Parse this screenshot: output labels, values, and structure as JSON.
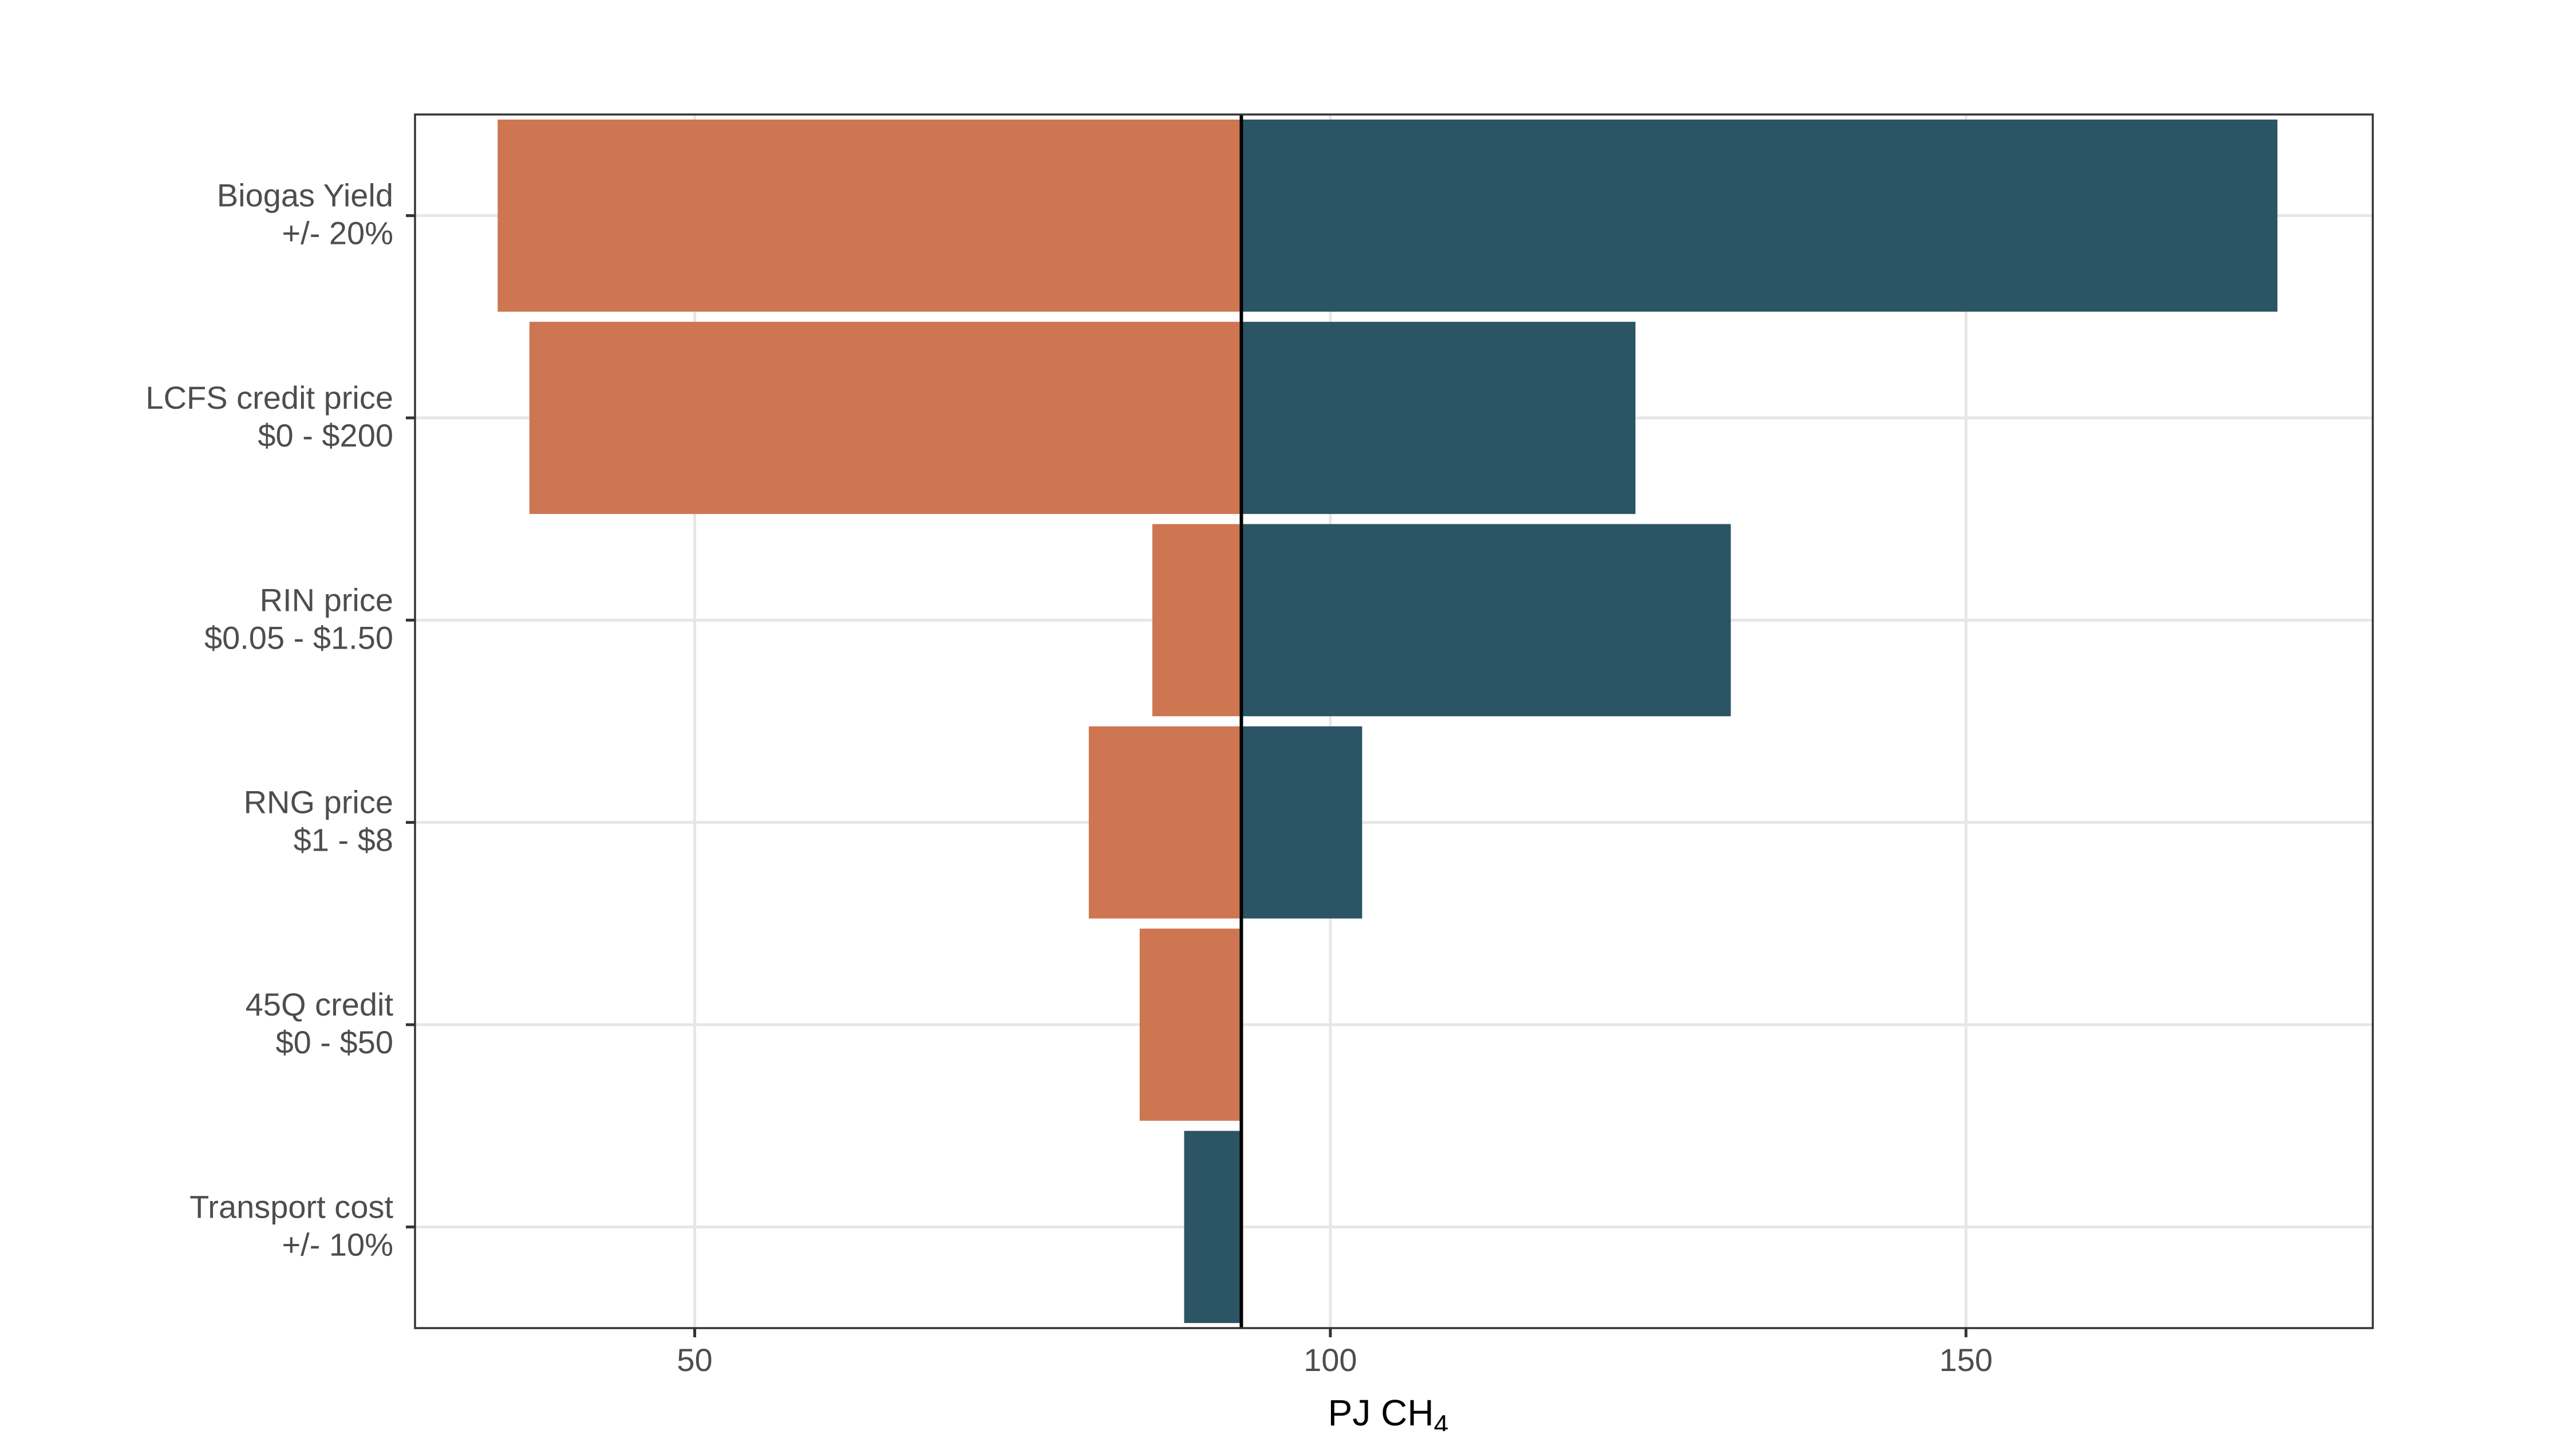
{
  "chart_data": {
    "type": "bar",
    "orientation": "horizontal",
    "subtype": "tornado",
    "baseline": 93,
    "categories": [
      [
        "Biogas Yield",
        "+/- 20%"
      ],
      [
        "LCFS credit price",
        "$0 - $200"
      ],
      [
        "RIN price",
        "$0.05 - $1.50"
      ],
      [
        "RNG price",
        "$1 - $8"
      ],
      [
        "45Q credit",
        "$0 - $50"
      ],
      [
        "Transport cost",
        "+/- 10%"
      ]
    ],
    "series": [
      {
        "color": "#CD7651",
        "values": [
          34.5,
          37,
          86,
          81,
          85,
          null
        ]
      },
      {
        "color": "#2B5464",
        "values": [
          174.5,
          124,
          131.5,
          102.5,
          null,
          88.5
        ]
      }
    ],
    "xlabel": "PJ CH",
    "xlabel_subscript": "4",
    "ylabel": "",
    "xlim": [
      28,
      182
    ],
    "xticks": [
      50,
      100,
      150
    ],
    "grid": true
  }
}
